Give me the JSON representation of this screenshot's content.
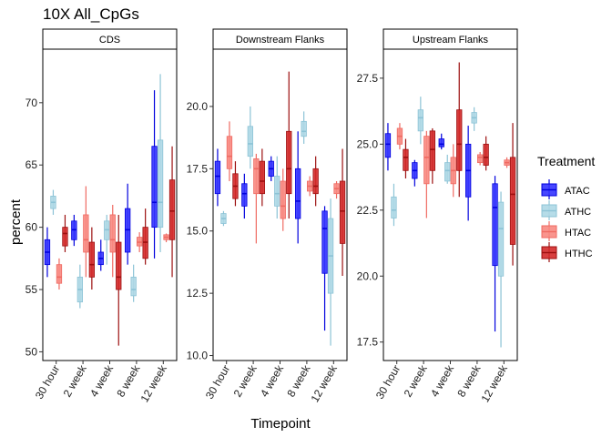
{
  "chart_data": {
    "type": "boxplot",
    "title": "10X All_CpGs",
    "xlabel": "Timepoint",
    "ylabel": "percent",
    "categories": [
      "30 hour",
      "2 week",
      "4 week",
      "8 week",
      "12 week"
    ],
    "legend": {
      "title": "Treatment",
      "placement": "right",
      "entries": [
        {
          "name": "ATAC",
          "fill": "#3333ff",
          "stroke": "#0000dd"
        },
        {
          "name": "ATHC",
          "fill": "#aed8e6",
          "stroke": "#8cc3d6"
        },
        {
          "name": "HTAC",
          "fill": "#f88a82",
          "stroke": "#ef6a62"
        },
        {
          "name": "HTHC",
          "fill": "#d42a2a",
          "stroke": "#9c0f0f"
        }
      ]
    },
    "grid": false,
    "panels": [
      {
        "name": "CDS",
        "ylim": [
          49.3,
          74.3
        ],
        "yticks": [
          50.0,
          55.0,
          60.0,
          65.0,
          70.0
        ],
        "ytick_labels": [
          "50",
          "55",
          "60",
          "65",
          "70"
        ],
        "boxes": [
          {
            "category": "30 hour",
            "series": "ATAC",
            "min": 56.0,
            "q1": 57.0,
            "median": 58.0,
            "q3": 59.0,
            "max": 60.0
          },
          {
            "category": "30 hour",
            "series": "ATHC",
            "min": 61.0,
            "q1": 61.5,
            "median": 62.0,
            "q3": 62.5,
            "max": 63.0
          },
          {
            "category": "30 hour",
            "series": "HTAC",
            "min": 55.0,
            "q1": 55.5,
            "median": 56.0,
            "q3": 57.0,
            "max": 57.5
          },
          {
            "category": "30 hour",
            "series": "HTHC",
            "min": 58.0,
            "q1": 58.5,
            "median": 59.5,
            "q3": 60.0,
            "max": 61.0
          },
          {
            "category": "2 week",
            "series": "ATAC",
            "min": 58.5,
            "q1": 59.0,
            "median": 59.8,
            "q3": 60.5,
            "max": 61.0
          },
          {
            "category": "2 week",
            "series": "ATHC",
            "min": 53.5,
            "q1": 54.0,
            "median": 55.0,
            "q3": 56.0,
            "max": 57.0
          },
          {
            "category": "2 week",
            "series": "HTAC",
            "min": 56.0,
            "q1": 58.0,
            "median": 59.0,
            "q3": 61.0,
            "max": 63.3
          },
          {
            "category": "2 week",
            "series": "HTHC",
            "min": 55.0,
            "q1": 56.0,
            "median": 57.0,
            "q3": 58.8,
            "max": 60.0
          },
          {
            "category": "4 week",
            "series": "ATAC",
            "min": 56.5,
            "q1": 57.0,
            "median": 57.5,
            "q3": 58.0,
            "max": 59.0
          },
          {
            "category": "4 week",
            "series": "ATHC",
            "min": 57.0,
            "q1": 59.0,
            "median": 59.8,
            "q3": 60.5,
            "max": 61.0
          },
          {
            "category": "4 week",
            "series": "HTAC",
            "min": 56.0,
            "q1": 58.0,
            "median": 59.0,
            "q3": 61.0,
            "max": 61.8
          },
          {
            "category": "4 week",
            "series": "HTHC",
            "min": 50.5,
            "q1": 55.0,
            "median": 56.0,
            "q3": 58.8,
            "max": 61.0
          },
          {
            "category": "8 week",
            "series": "ATAC",
            "min": 57.0,
            "q1": 58.0,
            "median": 59.8,
            "q3": 61.5,
            "max": 63.5
          },
          {
            "category": "8 week",
            "series": "ATHC",
            "min": 54.0,
            "q1": 54.5,
            "median": 55.0,
            "q3": 56.0,
            "max": 57.0
          },
          {
            "category": "8 week",
            "series": "HTAC",
            "min": 58.0,
            "q1": 58.5,
            "median": 58.8,
            "q3": 59.2,
            "max": 59.6
          },
          {
            "category": "8 week",
            "series": "HTHC",
            "min": 57.0,
            "q1": 57.5,
            "median": 58.8,
            "q3": 60.0,
            "max": 61.5
          },
          {
            "category": "12 week",
            "series": "ATAC",
            "min": 57.5,
            "q1": 60.0,
            "median": 62.0,
            "q3": 66.5,
            "max": 71.0
          },
          {
            "category": "12 week",
            "series": "ATHC",
            "min": 58.0,
            "q1": 60.0,
            "median": 62.0,
            "q3": 67.0,
            "max": 72.3
          },
          {
            "category": "12 week",
            "series": "HTAC",
            "min": 58.8,
            "q1": 59.0,
            "median": 59.2,
            "q3": 59.4,
            "max": 59.5
          },
          {
            "category": "12 week",
            "series": "HTHC",
            "min": 56.0,
            "q1": 59.0,
            "median": 61.3,
            "q3": 63.8,
            "max": 66.5
          }
        ]
      },
      {
        "name": "Downstream Flanks",
        "ylim": [
          9.8,
          22.3
        ],
        "yticks": [
          10.0,
          12.5,
          15.0,
          17.5,
          20.0
        ],
        "ytick_labels": [
          "10.0",
          "12.5",
          "15.0",
          "17.5",
          "20.0"
        ],
        "boxes": [
          {
            "category": "30 hour",
            "series": "ATAC",
            "min": 16.0,
            "q1": 16.5,
            "median": 17.2,
            "q3": 17.8,
            "max": 18.3
          },
          {
            "category": "30 hour",
            "series": "ATHC",
            "min": 15.2,
            "q1": 15.3,
            "median": 15.5,
            "q3": 15.7,
            "max": 15.8
          },
          {
            "category": "30 hour",
            "series": "HTAC",
            "min": 17.0,
            "q1": 17.5,
            "median": 18.0,
            "q3": 18.8,
            "max": 19.4
          },
          {
            "category": "30 hour",
            "series": "HTHC",
            "min": 16.0,
            "q1": 16.3,
            "median": 16.8,
            "q3": 17.3,
            "max": 17.8
          },
          {
            "category": "2 week",
            "series": "ATAC",
            "min": 15.5,
            "q1": 16.0,
            "median": 16.5,
            "q3": 16.9,
            "max": 17.3
          },
          {
            "category": "2 week",
            "series": "ATHC",
            "min": 17.5,
            "q1": 18.0,
            "median": 18.5,
            "q3": 19.2,
            "max": 20.0
          },
          {
            "category": "2 week",
            "series": "HTAC",
            "min": 14.5,
            "q1": 16.5,
            "median": 17.5,
            "q3": 17.9,
            "max": 18.1
          },
          {
            "category": "2 week",
            "series": "HTHC",
            "min": 16.0,
            "q1": 16.5,
            "median": 17.0,
            "q3": 17.8,
            "max": 18.3
          },
          {
            "category": "4 week",
            "series": "ATAC",
            "min": 17.0,
            "q1": 17.2,
            "median": 17.5,
            "q3": 17.8,
            "max": 18.0
          },
          {
            "category": "4 week",
            "series": "ATHC",
            "min": 15.5,
            "q1": 16.0,
            "median": 16.5,
            "q3": 17.2,
            "max": 18.0
          },
          {
            "category": "4 week",
            "series": "HTAC",
            "min": 15.0,
            "q1": 15.5,
            "median": 16.0,
            "q3": 17.0,
            "max": 17.5
          },
          {
            "category": "4 week",
            "series": "HTHC",
            "min": 15.5,
            "q1": 16.5,
            "median": 17.5,
            "q3": 19.0,
            "max": 21.4
          },
          {
            "category": "8 week",
            "series": "ATAC",
            "min": 14.5,
            "q1": 15.5,
            "median": 16.2,
            "q3": 17.5,
            "max": 19.0
          },
          {
            "category": "8 week",
            "series": "ATHC",
            "min": 18.5,
            "q1": 18.8,
            "median": 19.0,
            "q3": 19.4,
            "max": 19.8
          },
          {
            "category": "8 week",
            "series": "HTAC",
            "min": 16.4,
            "q1": 16.6,
            "median": 16.8,
            "q3": 17.0,
            "max": 17.2
          },
          {
            "category": "8 week",
            "series": "HTHC",
            "min": 16.0,
            "q1": 16.5,
            "median": 16.8,
            "q3": 17.5,
            "max": 18.0
          },
          {
            "category": "12 week",
            "series": "ATAC",
            "min": 11.0,
            "q1": 13.3,
            "median": 15.1,
            "q3": 15.8,
            "max": 16.0
          },
          {
            "category": "12 week",
            "series": "ATHC",
            "min": 10.4,
            "q1": 12.5,
            "median": 14.0,
            "q3": 15.5,
            "max": 16.3
          },
          {
            "category": "12 week",
            "series": "HTAC",
            "min": 16.3,
            "q1": 16.5,
            "median": 16.7,
            "q3": 16.9,
            "max": 17.0
          },
          {
            "category": "12 week",
            "series": "HTHC",
            "min": 13.2,
            "q1": 14.5,
            "median": 15.8,
            "q3": 17.0,
            "max": 18.3
          }
        ]
      },
      {
        "name": "Upstream Flanks",
        "ylim": [
          16.8,
          28.6
        ],
        "yticks": [
          17.5,
          20.0,
          22.5,
          25.0,
          27.5
        ],
        "ytick_labels": [
          "17.5",
          "20.0",
          "22.5",
          "25.0",
          "27.5"
        ],
        "boxes": [
          {
            "category": "30 hour",
            "series": "ATAC",
            "min": 24.0,
            "q1": 24.5,
            "median": 25.0,
            "q3": 25.4,
            "max": 25.8
          },
          {
            "category": "30 hour",
            "series": "ATHC",
            "min": 21.9,
            "q1": 22.2,
            "median": 22.5,
            "q3": 23.0,
            "max": 23.5
          },
          {
            "category": "30 hour",
            "series": "HTAC",
            "min": 24.8,
            "q1": 25.0,
            "median": 25.3,
            "q3": 25.6,
            "max": 25.8
          },
          {
            "category": "30 hour",
            "series": "HTHC",
            "min": 23.7,
            "q1": 24.0,
            "median": 24.5,
            "q3": 24.8,
            "max": 25.2
          },
          {
            "category": "2 week",
            "series": "ATAC",
            "min": 23.4,
            "q1": 23.7,
            "median": 24.0,
            "q3": 24.3,
            "max": 24.4
          },
          {
            "category": "2 week",
            "series": "ATHC",
            "min": 25.0,
            "q1": 25.5,
            "median": 26.0,
            "q3": 26.3,
            "max": 26.8
          },
          {
            "category": "2 week",
            "series": "HTAC",
            "min": 22.2,
            "q1": 23.5,
            "median": 24.5,
            "q3": 25.3,
            "max": 25.5
          },
          {
            "category": "2 week",
            "series": "HTHC",
            "min": 23.5,
            "q1": 24.0,
            "median": 24.8,
            "q3": 25.5,
            "max": 25.6
          },
          {
            "category": "4 week",
            "series": "ATAC",
            "min": 24.8,
            "q1": 24.9,
            "median": 25.0,
            "q3": 25.2,
            "max": 25.4
          },
          {
            "category": "4 week",
            "series": "ATHC",
            "min": 23.5,
            "q1": 23.6,
            "median": 24.0,
            "q3": 24.3,
            "max": 24.6
          },
          {
            "category": "4 week",
            "series": "HTAC",
            "min": 23.0,
            "q1": 23.5,
            "median": 24.0,
            "q3": 24.5,
            "max": 25.0
          },
          {
            "category": "4 week",
            "series": "HTHC",
            "min": 23.0,
            "q1": 24.0,
            "median": 25.0,
            "q3": 26.3,
            "max": 28.1
          },
          {
            "category": "8 week",
            "series": "ATAC",
            "min": 22.1,
            "q1": 23.0,
            "median": 24.0,
            "q3": 25.0,
            "max": 25.7
          },
          {
            "category": "8 week",
            "series": "ATHC",
            "min": 25.5,
            "q1": 25.8,
            "median": 26.0,
            "q3": 26.2,
            "max": 26.4
          },
          {
            "category": "8 week",
            "series": "HTAC",
            "min": 24.2,
            "q1": 24.3,
            "median": 24.5,
            "q3": 24.6,
            "max": 24.7
          },
          {
            "category": "8 week",
            "series": "HTHC",
            "min": 24.0,
            "q1": 24.2,
            "median": 24.5,
            "q3": 25.0,
            "max": 25.3
          },
          {
            "category": "12 week",
            "series": "ATAC",
            "min": 17.9,
            "q1": 20.4,
            "median": 22.6,
            "q3": 23.5,
            "max": 23.8
          },
          {
            "category": "12 week",
            "series": "ATHC",
            "min": 17.3,
            "q1": 20.0,
            "median": 21.8,
            "q3": 22.8,
            "max": 23.2
          },
          {
            "category": "12 week",
            "series": "HTAC",
            "min": 24.1,
            "q1": 24.2,
            "median": 24.3,
            "q3": 24.4,
            "max": 24.5
          },
          {
            "category": "12 week",
            "series": "HTHC",
            "min": 20.4,
            "q1": 21.2,
            "median": 23.1,
            "q3": 24.5,
            "max": 25.8
          }
        ]
      }
    ]
  }
}
